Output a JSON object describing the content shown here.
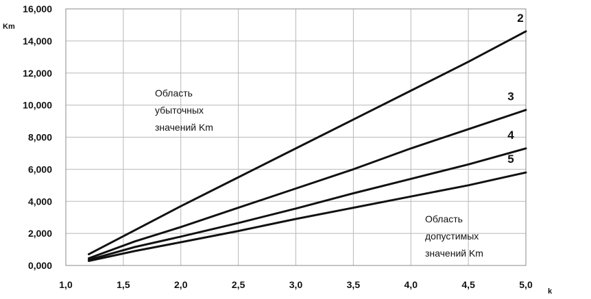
{
  "chart_data": {
    "type": "line",
    "title": "",
    "xlabel": "k",
    "ylabel": "Km",
    "xlim": [
      1.0,
      5.0
    ],
    "ylim": [
      0,
      16000
    ],
    "grid": true,
    "x_ticks": [
      1.0,
      1.5,
      2.0,
      2.5,
      3.0,
      3.5,
      4.0,
      4.5,
      5.0
    ],
    "x_tick_labels": [
      "1,0",
      "1,5",
      "2,0",
      "2,5",
      "3,0",
      "3,5",
      "4,0",
      "4,5",
      "5,0"
    ],
    "y_ticks": [
      0,
      2000,
      4000,
      6000,
      8000,
      10000,
      12000,
      14000,
      16000
    ],
    "y_tick_labels": [
      "0,000",
      "2,000",
      "4,000",
      "6,000",
      "8,000",
      "10,000",
      "12,000",
      "14,000",
      "16,000"
    ],
    "series": [
      {
        "name": "2",
        "x": [
          1.2,
          1.6,
          2.0,
          2.5,
          3.0,
          3.5,
          4.0,
          4.5,
          5.0
        ],
        "values": [
          700,
          2200,
          3700,
          5500,
          7300,
          9100,
          10900,
          12700,
          14600
        ]
      },
      {
        "name": "3",
        "x": [
          1.2,
          1.6,
          2.0,
          2.5,
          3.0,
          3.5,
          4.0,
          4.5,
          5.0
        ],
        "values": [
          450,
          1500,
          2400,
          3600,
          4800,
          6000,
          7300,
          8500,
          9700
        ]
      },
      {
        "name": "4",
        "x": [
          1.2,
          1.6,
          2.0,
          2.5,
          3.0,
          3.5,
          4.0,
          4.5,
          5.0
        ],
        "values": [
          350,
          1150,
          1800,
          2650,
          3550,
          4500,
          5400,
          6300,
          7300
        ]
      },
      {
        "name": "5",
        "x": [
          1.2,
          1.6,
          2.0,
          2.5,
          3.0,
          3.5,
          4.0,
          4.5,
          5.0
        ],
        "values": [
          280,
          900,
          1450,
          2150,
          2900,
          3600,
          4300,
          5000,
          5800
        ]
      }
    ],
    "annotations": {
      "upper": [
        "Область",
        "убыточных",
        "значений Km"
      ],
      "lower": [
        "Область",
        "допустимых",
        "значений Km"
      ]
    },
    "line_color": "#111111",
    "grid_color": "#b8b8b8"
  }
}
